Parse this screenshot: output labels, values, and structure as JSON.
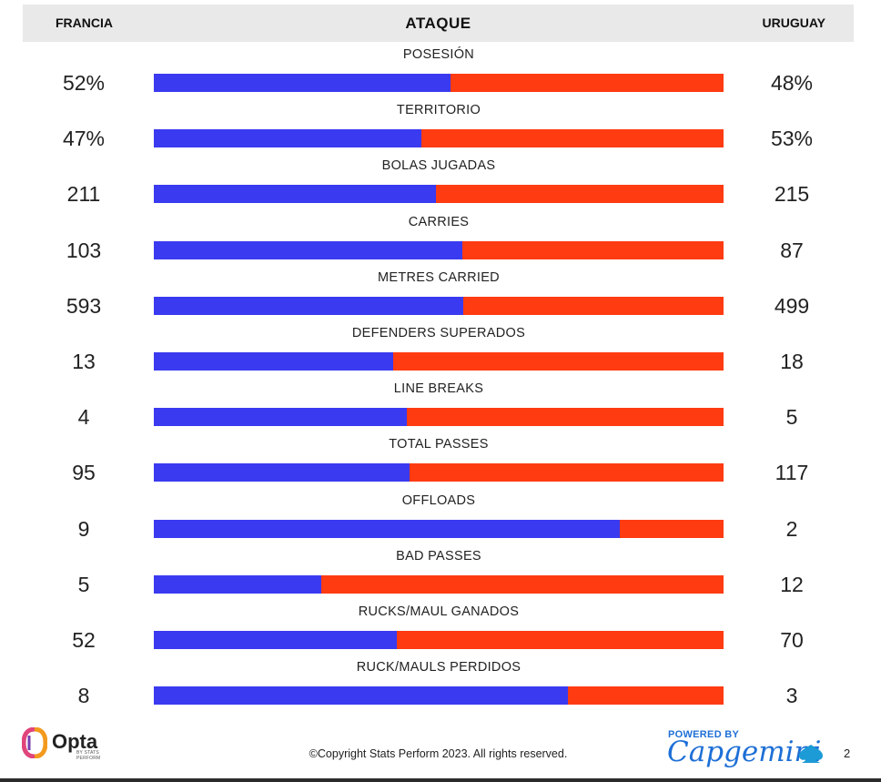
{
  "header": {
    "left_team": "FRANCIA",
    "section_title": "ATAQUE",
    "right_team": "URUGUAY"
  },
  "colors": {
    "francia": "#3a3af0",
    "uruguay": "#ff3b12",
    "header_bg": "#e9e9e9"
  },
  "chart_data": {
    "type": "bar",
    "orientation": "horizontal-stacked-comparison",
    "title": "ATAQUE",
    "series": [
      {
        "name": "FRANCIA"
      },
      {
        "name": "URUGUAY"
      }
    ],
    "stats": [
      {
        "label": "POSESIÓN",
        "francia": "52%",
        "uruguay": "48%",
        "francia_value": 52,
        "uruguay_value": 48
      },
      {
        "label": "TERRITORIO",
        "francia": "47%",
        "uruguay": "53%",
        "francia_value": 47,
        "uruguay_value": 53
      },
      {
        "label": "BOLAS JUGADAS",
        "francia": "211",
        "uruguay": "215",
        "francia_value": 211,
        "uruguay_value": 215
      },
      {
        "label": "CARRIES",
        "francia": "103",
        "uruguay": "87",
        "francia_value": 103,
        "uruguay_value": 87
      },
      {
        "label": "METRES CARRIED",
        "francia": "593",
        "uruguay": "499",
        "francia_value": 593,
        "uruguay_value": 499
      },
      {
        "label": "DEFENDERS SUPERADOS",
        "francia": "13",
        "uruguay": "18",
        "francia_value": 13,
        "uruguay_value": 18
      },
      {
        "label": "LINE BREAKS",
        "francia": "4",
        "uruguay": "5",
        "francia_value": 4,
        "uruguay_value": 5
      },
      {
        "label": "TOTAL PASSES",
        "francia": "95",
        "uruguay": "117",
        "francia_value": 95,
        "uruguay_value": 117
      },
      {
        "label": "OFFLOADS",
        "francia": "9",
        "uruguay": "2",
        "francia_value": 9,
        "uruguay_value": 2
      },
      {
        "label": "BAD PASSES",
        "francia": "5",
        "uruguay": "12",
        "francia_value": 5,
        "uruguay_value": 12
      },
      {
        "label": "RUCKS/MAUL GANADOS",
        "francia": "52",
        "uruguay": "70",
        "francia_value": 52,
        "uruguay_value": 70
      },
      {
        "label": "RUCK/MAULS PERDIDOS",
        "francia": "8",
        "uruguay": "3",
        "francia_value": 8,
        "uruguay_value": 3
      }
    ]
  },
  "footer": {
    "opta_logo": "Opta",
    "opta_sub": "BY STATS PERFORM",
    "copyright": "©Copyright Stats Perform 2023. All rights reserved.",
    "powered_by": "POWERED BY",
    "capgemini": "Capgemini",
    "page_number": "2"
  }
}
